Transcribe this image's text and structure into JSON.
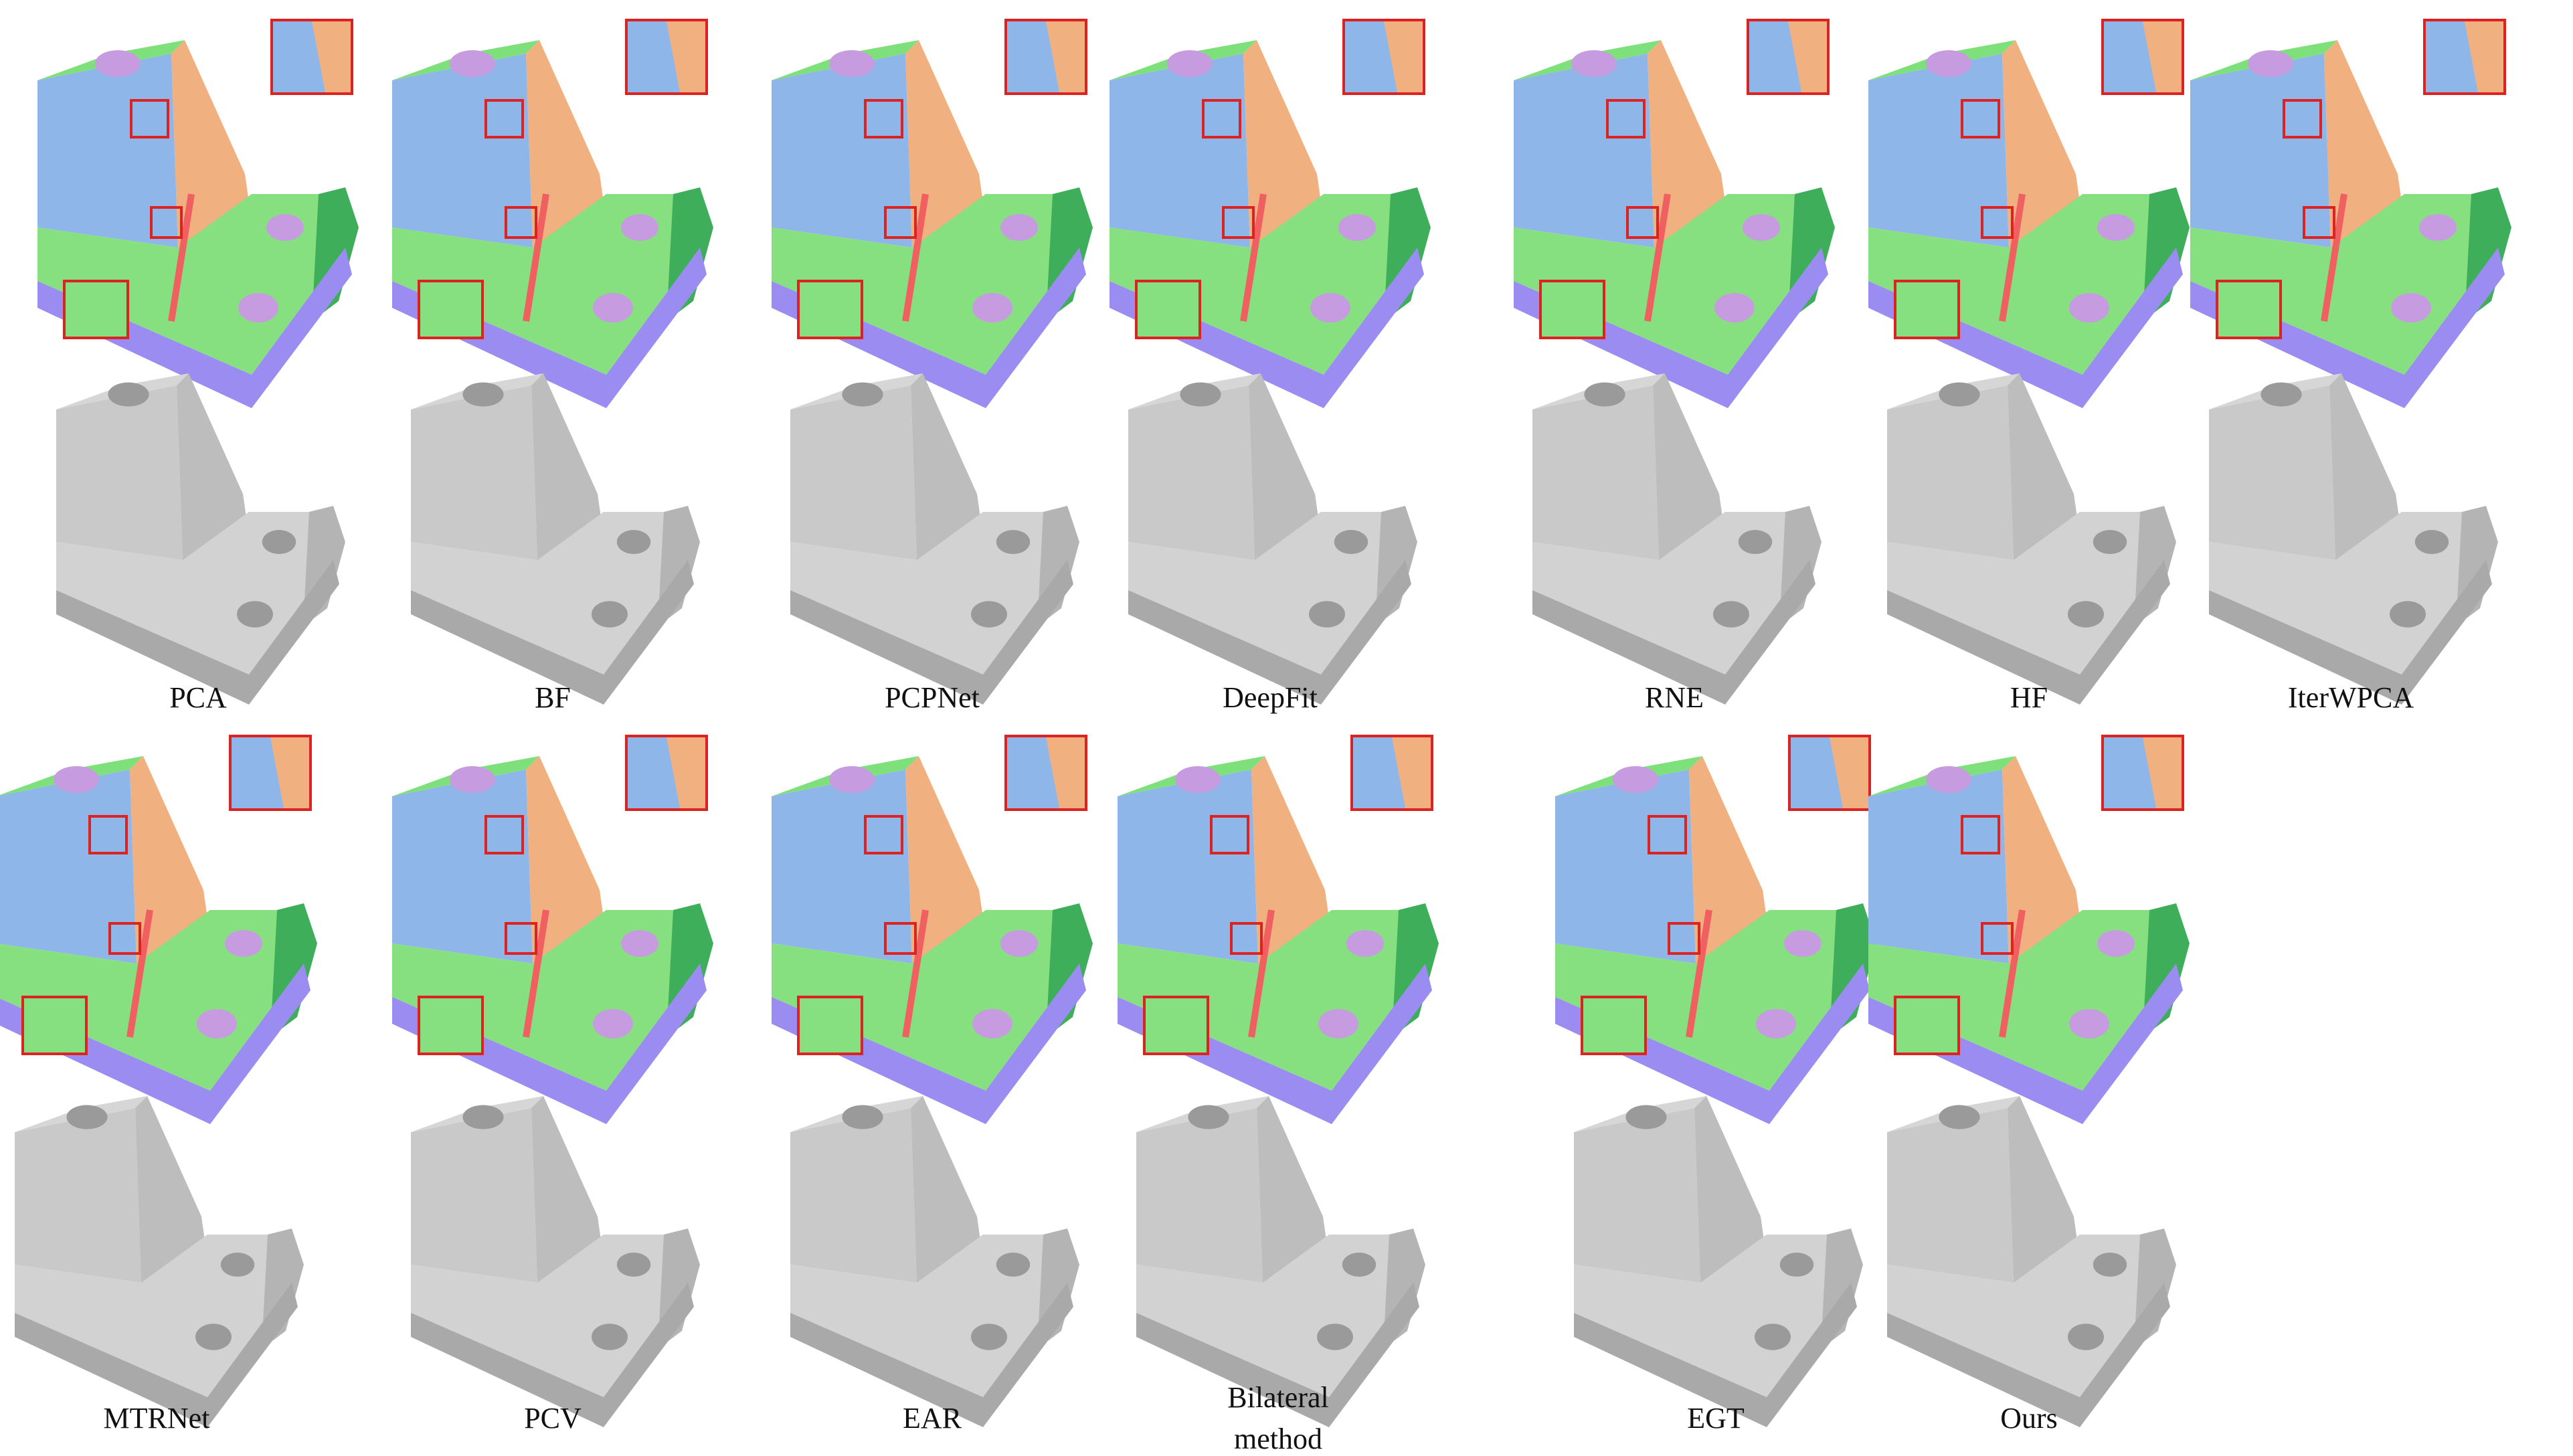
{
  "labels": [
    "PCA",
    "BF",
    "PCPNet",
    "DeepFit",
    "RNE",
    "HF",
    "IterWPCA",
    "MTRNet",
    "PCV",
    "EAR",
    "Bilateral method",
    "EGT",
    "Ours"
  ]
}
